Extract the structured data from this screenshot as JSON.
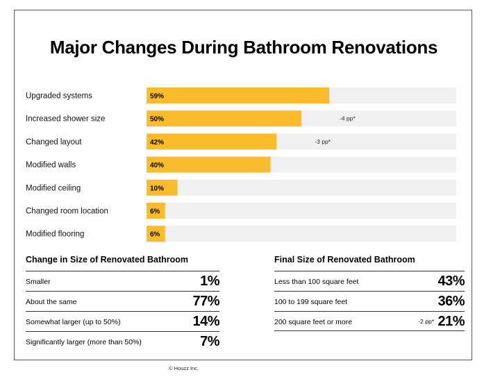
{
  "title": "Major Changes During Bathroom Renovations",
  "chart_data": {
    "type": "bar",
    "orientation": "horizontal",
    "categories": [
      "Upgraded systems",
      "Increased shower size",
      "Changed layout",
      "Modified walls",
      "Modified ceiling",
      "Changed room location",
      "Modified flooring"
    ],
    "values": [
      59,
      50,
      42,
      40,
      10,
      6,
      6
    ],
    "value_labels": [
      "59%",
      "50%",
      "42%",
      "40%",
      "10%",
      "6%",
      "6%"
    ],
    "changes": [
      "",
      "-4 pp*",
      "-3 pp*",
      "",
      "",
      "",
      ""
    ],
    "xlim": [
      0,
      100
    ],
    "bar_color": "#fbbc2c",
    "track_color": "#f0f0f0"
  },
  "size_change": {
    "title": "Change in Size of Renovated Bathroom",
    "rows": [
      {
        "label": "Smaller",
        "value": "1%"
      },
      {
        "label": "About the same",
        "value": "77%"
      },
      {
        "label": "Somewhat larger (up to 50%)",
        "value": "14%"
      },
      {
        "label": "Significantly larger (more than 50%)",
        "value": "7%"
      }
    ]
  },
  "final_size": {
    "title": "Final Size of Renovated Bathroom",
    "rows": [
      {
        "label": "Less than 100 square feet",
        "value": "43%",
        "change": ""
      },
      {
        "label": "100 to 199 square feet",
        "value": "36%",
        "change": ""
      },
      {
        "label": "200 square feet or more",
        "value": "21%",
        "change": "-2 pp*"
      }
    ]
  },
  "footer": "© Houzz Inc."
}
